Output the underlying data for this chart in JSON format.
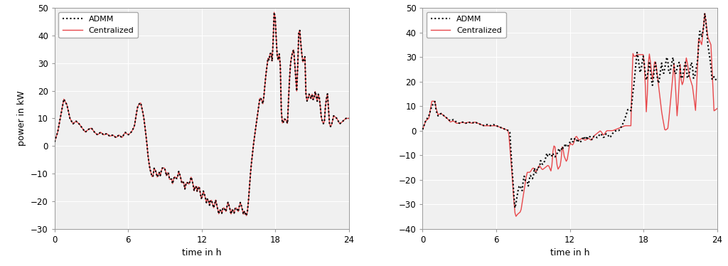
{
  "left_ylim": [
    -30,
    50
  ],
  "right_ylim": [
    -40,
    50
  ],
  "xlim": [
    0,
    24
  ],
  "xticks": [
    0,
    6,
    12,
    18,
    24
  ],
  "left_yticks": [
    -30,
    -20,
    -10,
    0,
    10,
    20,
    30,
    40,
    50
  ],
  "right_yticks": [
    -40,
    -30,
    -20,
    -10,
    0,
    10,
    20,
    30,
    40,
    50
  ],
  "xlabel": "time in h",
  "ylabel": "power in kW",
  "legend_admm": "ADMM",
  "legend_centralized": "Centralized",
  "admm_color": "#000000",
  "centralized_color": "#e8474a",
  "background_color": "#f0f0f0",
  "grid_color": "#ffffff",
  "admm_linewidth": 1.5,
  "centralized_linewidth": 1.0,
  "admm_dotsize": 4
}
